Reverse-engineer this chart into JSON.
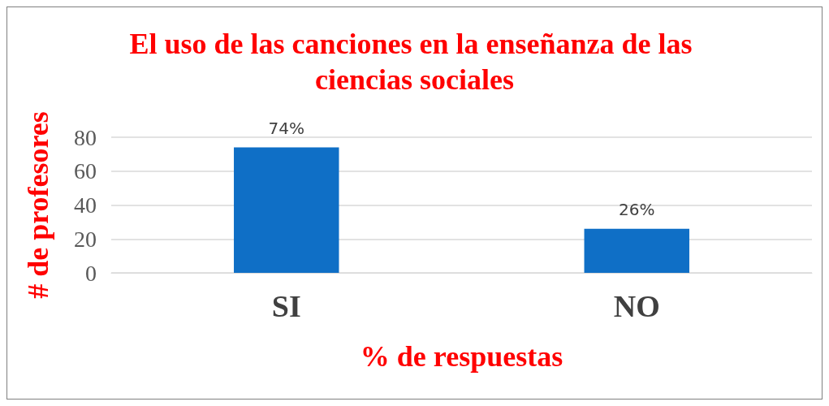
{
  "chart_data": {
    "type": "bar",
    "title": "El uso de las canciones en la enseñanza de las ciencias sociales",
    "xlabel": "% de respuestas",
    "ylabel": "# de profesores",
    "categories": [
      "SI",
      "NO"
    ],
    "series": [
      {
        "color": "#0f6fc6",
        "values": [
          74,
          26
        ],
        "value_labels": [
          "74%",
          "26%"
        ]
      }
    ],
    "ylim": [
      0,
      80
    ],
    "yticks": [
      0,
      20,
      40,
      60,
      80
    ],
    "grid": "y"
  }
}
